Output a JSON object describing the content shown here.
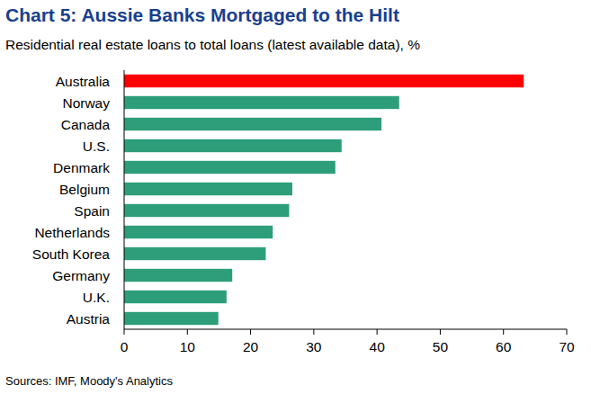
{
  "chart_data": {
    "type": "bar",
    "orientation": "horizontal",
    "title": "Chart 5: Aussie Banks Mortgaged to the Hilt",
    "subtitle": "Residential real estate loans to total loans (latest available data), %",
    "source": "Sources: IMF, Moody's Analytics",
    "categories": [
      "Australia",
      "Norway",
      "Canada",
      "U.S.",
      "Denmark",
      "Belgium",
      "Spain",
      "Netherlands",
      "South Korea",
      "Germany",
      "U.K.",
      "Austria"
    ],
    "values": [
      63.2,
      43.5,
      40.7,
      34.4,
      33.4,
      26.6,
      26.1,
      23.5,
      22.4,
      17.1,
      16.2,
      14.9
    ],
    "colors": [
      "#ff0000",
      "#2e9e7a",
      "#2e9e7a",
      "#2e9e7a",
      "#2e9e7a",
      "#2e9e7a",
      "#2e9e7a",
      "#2e9e7a",
      "#2e9e7a",
      "#2e9e7a",
      "#2e9e7a",
      "#2e9e7a"
    ],
    "xlim": [
      0,
      70
    ],
    "xticks": [
      0,
      10,
      20,
      30,
      40,
      50,
      60,
      70
    ],
    "grid": false
  }
}
